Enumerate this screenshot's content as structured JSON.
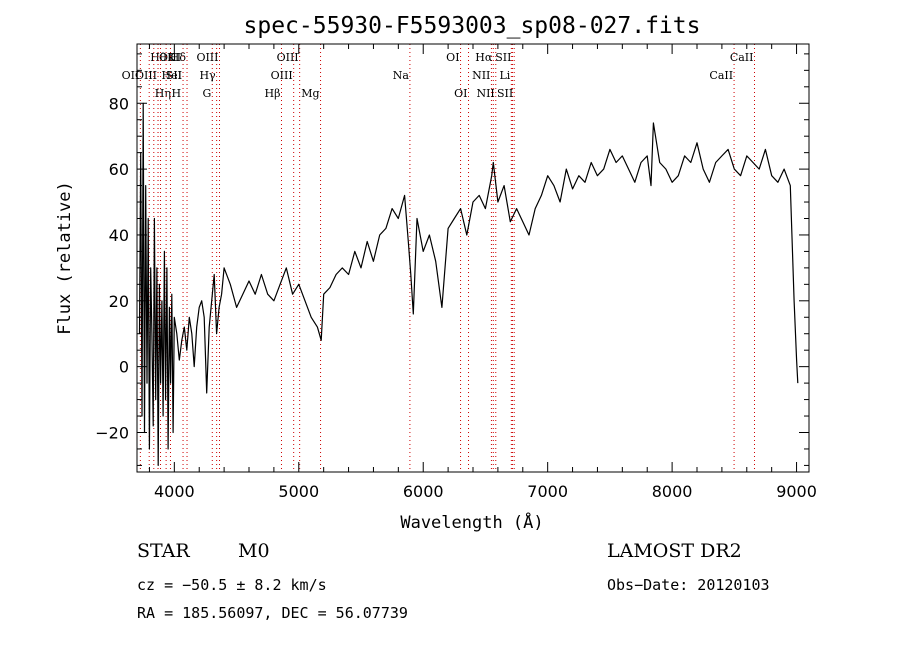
{
  "chart_data": {
    "type": "line",
    "title": "spec-55930-F5593003_sp08-027.fits",
    "xlabel": "Wavelength (Å)",
    "ylabel": "Flux (relative)",
    "xlim": [
      3700,
      9100
    ],
    "ylim": [
      -32,
      98
    ],
    "xticks": [
      4000,
      5000,
      6000,
      7000,
      8000,
      9000
    ],
    "yticks": [
      -20,
      0,
      20,
      40,
      60,
      80
    ],
    "ytick_labels": [
      "−20",
      "0",
      "20",
      "40",
      "60",
      "80"
    ],
    "grid": false,
    "series": [
      {
        "x": [
          3720,
          3730,
          3740,
          3750,
          3760,
          3770,
          3780,
          3790,
          3800,
          3810,
          3820,
          3830,
          3840,
          3850,
          3860,
          3870,
          3880,
          3890,
          3900,
          3910,
          3920,
          3930,
          3940,
          3950,
          3960,
          3970,
          3980,
          3990,
          4000,
          4020,
          4040,
          4060,
          4080,
          4100,
          4120,
          4140,
          4160,
          4180,
          4200,
          4220,
          4240,
          4260,
          4280,
          4300,
          4320,
          4340,
          4360,
          4380,
          4400,
          4450,
          4500,
          4550,
          4600,
          4650,
          4700,
          4750,
          4800,
          4850,
          4900,
          4950,
          5000,
          5050,
          5100,
          5150,
          5180,
          5200,
          5250,
          5300,
          5350,
          5400,
          5450,
          5500,
          5550,
          5600,
          5650,
          5700,
          5750,
          5800,
          5850,
          5880,
          5900,
          5920,
          5950,
          6000,
          6050,
          6100,
          6150,
          6200,
          6250,
          6300,
          6350,
          6400,
          6450,
          6500,
          6550,
          6563,
          6600,
          6650,
          6700,
          6750,
          6800,
          6850,
          6900,
          6950,
          7000,
          7050,
          7100,
          7150,
          7200,
          7250,
          7300,
          7350,
          7400,
          7450,
          7500,
          7550,
          7600,
          7650,
          7700,
          7750,
          7800,
          7830,
          7850,
          7900,
          7950,
          8000,
          8050,
          8100,
          8150,
          8200,
          8250,
          8300,
          8350,
          8400,
          8450,
          8500,
          8550,
          8600,
          8650,
          8700,
          8750,
          8800,
          8850,
          8900,
          8950,
          8980,
          9000,
          9010
        ],
        "y": [
          10,
          65,
          -15,
          80,
          -20,
          55,
          -5,
          45,
          -25,
          30,
          10,
          -18,
          45,
          -10,
          30,
          -30,
          25,
          -5,
          20,
          -15,
          35,
          -10,
          30,
          -25,
          18,
          -5,
          22,
          -20,
          15,
          10,
          2,
          8,
          12,
          5,
          15,
          10,
          0,
          12,
          18,
          20,
          15,
          -8,
          12,
          20,
          28,
          10,
          18,
          22,
          30,
          25,
          18,
          22,
          26,
          22,
          28,
          22,
          20,
          25,
          30,
          22,
          25,
          20,
          15,
          12,
          8,
          22,
          24,
          28,
          30,
          28,
          35,
          30,
          38,
          32,
          40,
          42,
          48,
          45,
          52,
          38,
          28,
          16,
          45,
          35,
          40,
          32,
          18,
          42,
          45,
          48,
          40,
          50,
          52,
          48,
          58,
          62,
          50,
          55,
          44,
          48,
          44,
          40,
          48,
          52,
          58,
          55,
          50,
          60,
          54,
          58,
          56,
          62,
          58,
          60,
          66,
          62,
          64,
          60,
          56,
          62,
          64,
          55,
          74,
          62,
          60,
          56,
          58,
          64,
          62,
          68,
          60,
          56,
          62,
          64,
          66,
          60,
          58,
          64,
          62,
          60,
          66,
          58,
          56,
          60,
          55,
          20,
          2,
          -5
        ]
      }
    ],
    "line_marks": [
      {
        "label": "OII",
        "x": 3727,
        "row": 1,
        "pos": "L"
      },
      {
        "label": "Hθ",
        "x": 3798,
        "row": 0,
        "pos": "R"
      },
      {
        "label": "OIII",
        "x": 3869,
        "row": 0,
        "pos": "R"
      },
      {
        "label": "OIII",
        "x": 3869,
        "row": 1,
        "pos": "L"
      },
      {
        "label": "Hη",
        "x": 3835,
        "row": 2,
        "pos": "R"
      },
      {
        "label": "HeI",
        "x": 3889,
        "row": 1,
        "pos": "R"
      },
      {
        "label": "K",
        "x": 3934,
        "row": 0,
        "pos": "R"
      },
      {
        "label": "H",
        "x": 3969,
        "row": 2,
        "pos": "R"
      },
      {
        "label": "SII",
        "x": 4070,
        "row": 1,
        "pos": "L"
      },
      {
        "label": "Hδ",
        "x": 4102,
        "row": 0,
        "pos": "L"
      },
      {
        "label": "G",
        "x": 4305,
        "row": 2,
        "pos": "L"
      },
      {
        "label": "Hγ",
        "x": 4340,
        "row": 1,
        "pos": "L"
      },
      {
        "label": "OIII",
        "x": 4363,
        "row": 0,
        "pos": "L"
      },
      {
        "label": "Hβ",
        "x": 4861,
        "row": 2,
        "pos": "L"
      },
      {
        "label": "OIII",
        "x": 4959,
        "row": 1,
        "pos": "L"
      },
      {
        "label": "OIII",
        "x": 5007,
        "row": 0,
        "pos": "L"
      },
      {
        "label": "Mg",
        "x": 5175,
        "row": 2,
        "pos": "L"
      },
      {
        "label": "Na",
        "x": 5893,
        "row": 1,
        "pos": "L"
      },
      {
        "label": "OI",
        "x": 6300,
        "row": 0,
        "pos": "L"
      },
      {
        "label": "OI",
        "x": 6364,
        "row": 2,
        "pos": "L"
      },
      {
        "label": "NII",
        "x": 6548,
        "row": 1,
        "pos": "L"
      },
      {
        "label": "Hα",
        "x": 6563,
        "row": 0,
        "pos": "L"
      },
      {
        "label": "NII",
        "x": 6583,
        "row": 2,
        "pos": "L"
      },
      {
        "label": "Li",
        "x": 6708,
        "row": 1,
        "pos": "L"
      },
      {
        "label": "SII",
        "x": 6717,
        "row": 0,
        "pos": "L"
      },
      {
        "label": "SII",
        "x": 6731,
        "row": 2,
        "pos": "L"
      },
      {
        "label": "CaII",
        "x": 8498,
        "row": 1,
        "pos": "L"
      },
      {
        "label": "CaII",
        "x": 8662,
        "row": 0,
        "pos": "L"
      }
    ]
  },
  "info": {
    "object_class": "STAR",
    "subclass": "M0",
    "velocity": "cz = −50.5 ± 8.2 km/s",
    "coords": "RA = 185.56097, DEC =  56.07739",
    "survey": "LAMOST DR2",
    "obs_date": "Obs−Date: 20120103"
  },
  "colors": {
    "plot": "#000000",
    "line_mark": "#cc0000"
  }
}
